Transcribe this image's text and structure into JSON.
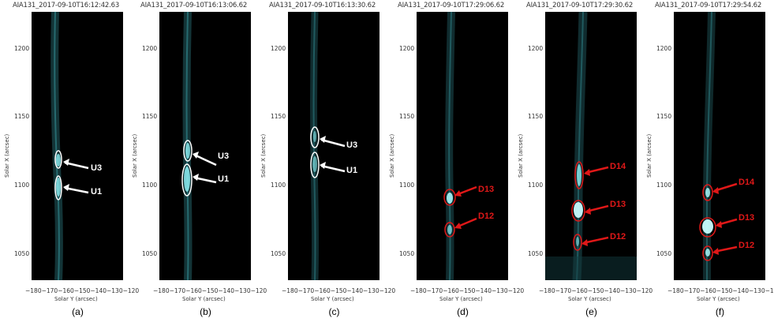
{
  "panels": [
    {
      "title": "AIA131_2017-09-10T16:12:42.63",
      "label": "(a)",
      "marks": [
        {
          "text": "U3",
          "color": "white"
        },
        {
          "text": "U1",
          "color": "white"
        }
      ]
    },
    {
      "title": "AIA131_2017-09-10T16:13:06.62",
      "label": "(b)",
      "marks": [
        {
          "text": "U3",
          "color": "white"
        },
        {
          "text": "U1",
          "color": "white"
        }
      ]
    },
    {
      "title": "AIA131_2017-09-10T16:13:30.62",
      "label": "(c)",
      "marks": [
        {
          "text": "U3",
          "color": "white"
        },
        {
          "text": "U1",
          "color": "white"
        }
      ]
    },
    {
      "title": "AIA131_2017-09-10T17:29:06.62",
      "label": "(d)",
      "marks": [
        {
          "text": "D13",
          "color": "red"
        },
        {
          "text": "D12",
          "color": "red"
        }
      ]
    },
    {
      "title": "AIA131_2017-09-10T17:29:30.62",
      "label": "(e)",
      "marks": [
        {
          "text": "D14",
          "color": "red"
        },
        {
          "text": "D13",
          "color": "red"
        },
        {
          "text": "D12",
          "color": "red"
        }
      ]
    },
    {
      "title": "AIA131_2017-09-10T17:29:54.62",
      "label": "(f)",
      "marks": [
        {
          "text": "D14",
          "color": "red"
        },
        {
          "text": "D13",
          "color": "red"
        },
        {
          "text": "D12",
          "color": "red"
        }
      ]
    }
  ],
  "axes": {
    "y_label": "Solar X (arcsec)",
    "x_label": "Solar Y (arcsec)",
    "y_ticks": [
      "1200",
      "1150",
      "1100",
      "1050"
    ],
    "x_ticks": "−180−170−160−150−140−130−120"
  },
  "colors": {
    "annotation_white": "#ffffff",
    "annotation_red": "#e01818",
    "emission": "#5fe0e8"
  }
}
